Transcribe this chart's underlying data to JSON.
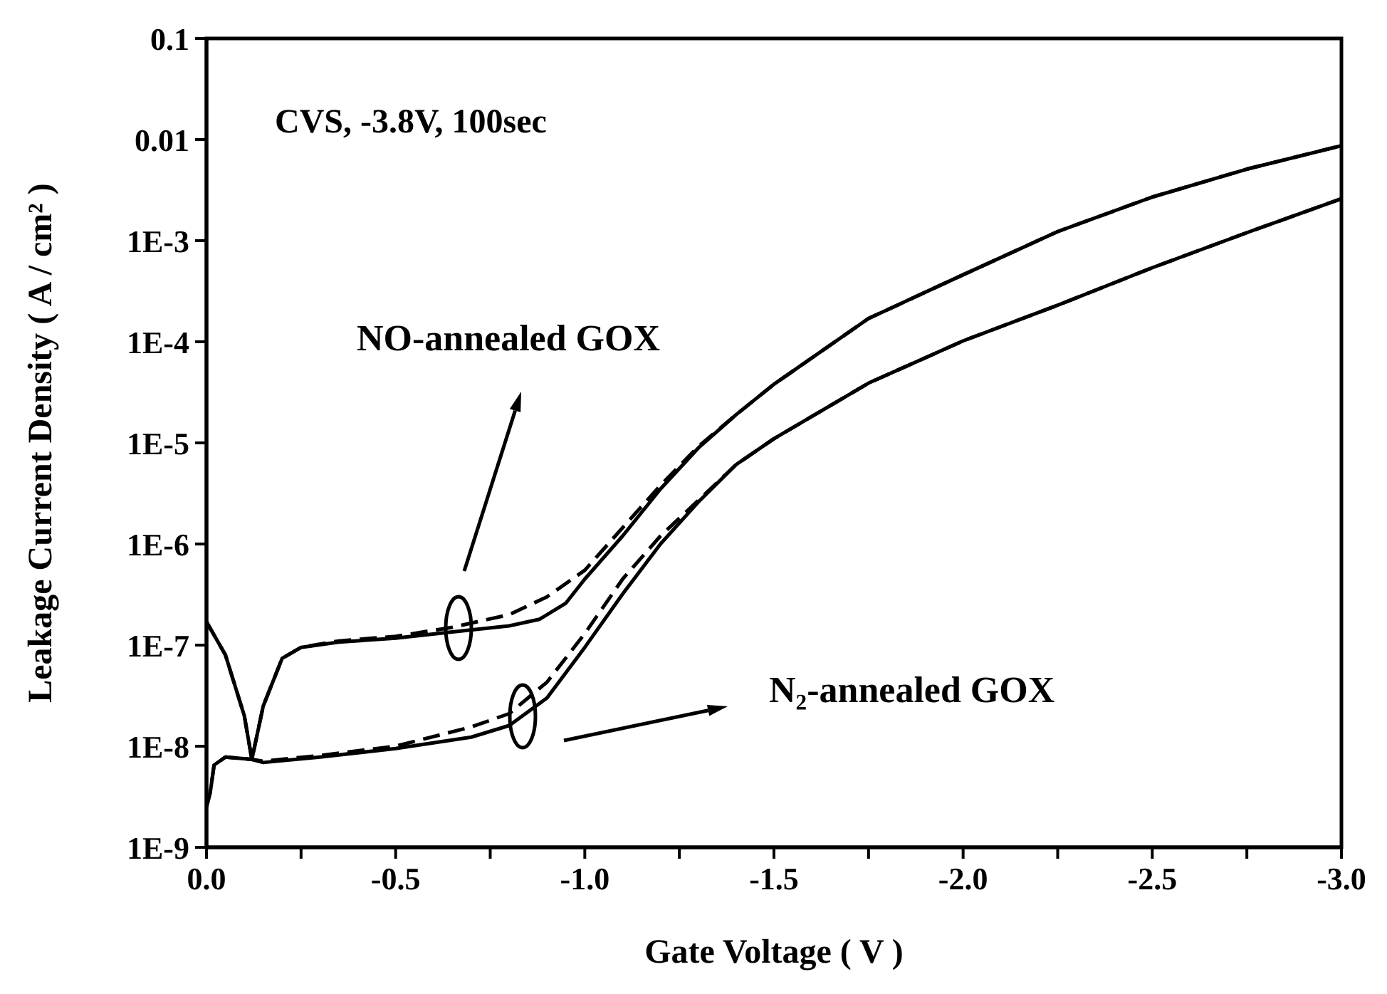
{
  "chart_data": {
    "type": "line",
    "xlabel": "Gate Voltage ( V )",
    "ylabel": "Leakage Current Density ( A / cm² )",
    "xlim": [
      0,
      -3
    ],
    "ylim": [
      1e-09,
      0.1
    ],
    "log": "y",
    "marker": "none",
    "xticks": [
      {
        "value": 0,
        "label": "0.0"
      },
      {
        "value": -0.25,
        "label": null
      },
      {
        "value": -0.5,
        "label": "-0.5"
      },
      {
        "value": -0.75,
        "label": null
      },
      {
        "value": -1,
        "label": "-1.0"
      },
      {
        "value": -1.25,
        "label": null
      },
      {
        "value": -1.5,
        "label": "-1.5"
      },
      {
        "value": -1.75,
        "label": null
      },
      {
        "value": -2,
        "label": "-2.0"
      },
      {
        "value": -2.25,
        "label": null
      },
      {
        "value": -2.5,
        "label": "-2.5"
      },
      {
        "value": -2.75,
        "label": null
      },
      {
        "value": -3,
        "label": "-3.0"
      }
    ],
    "yticks": [
      {
        "value": 1e-09,
        "label": "1E-9"
      },
      {
        "value": 1e-08,
        "label": "1E-8"
      },
      {
        "value": 1e-07,
        "label": "1E-7"
      },
      {
        "value": 1e-06,
        "label": "1E-6"
      },
      {
        "value": 1e-05,
        "label": "1E-5"
      },
      {
        "value": 0.0001,
        "label": "1E-4"
      },
      {
        "value": 0.001,
        "label": "1E-3"
      },
      0.01,
      0.1
    ],
    "annotations": [
      "CVS, -3.8V, 100sec",
      "NO-annealed GOX",
      "N₂-annealed GOX"
    ],
    "series": [
      {
        "color": "#000000",
        "line_style": "solid",
        "x": [
          0,
          -0.05,
          -0.1,
          -0.12,
          -0.15,
          -0.2,
          -0.25,
          -0.35,
          -0.5,
          -0.65,
          -0.8,
          -0.88,
          -0.95,
          -1.0,
          -1.1,
          -1.2,
          -1.3,
          -1.4,
          -1.5,
          -1.75,
          -2.0,
          -2.25,
          -2.5,
          -2.75,
          -3.0
        ],
        "values": [
          1.7e-07,
          8e-08,
          2e-08,
          7.4e-09,
          2.5e-08,
          7.4e-08,
          9.5e-08,
          1.07e-07,
          1.17e-07,
          1.35e-07,
          1.55e-07,
          1.8e-07,
          2.6e-07,
          4.5e-07,
          1.2e-06,
          3.5e-06,
          8.9e-06,
          1.9e-05,
          3.8e-05,
          0.00017,
          0.00046,
          0.00123,
          0.0027,
          0.0051,
          0.0087
        ]
      },
      {
        "color": "#000000",
        "line_style": "dashed",
        "x": [
          0,
          -0.05,
          -0.1,
          -0.12,
          -0.15,
          -0.2,
          -0.25,
          -0.35,
          -0.5,
          -0.65,
          -0.8,
          -0.9,
          -1.0,
          -1.1,
          -1.2,
          -1.3,
          -1.4,
          -1.5,
          -1.75,
          -2.0,
          -2.25,
          -2.5,
          -2.75,
          -3.0
        ],
        "values": [
          1.7e-07,
          8e-08,
          2e-08,
          7.4e-09,
          2.5e-08,
          7.4e-08,
          9.5e-08,
          1.1e-07,
          1.22e-07,
          1.5e-07,
          2e-07,
          3e-07,
          5.5e-07,
          1.45e-06,
          3.8e-06,
          9.2e-06,
          1.9e-05,
          3.8e-05,
          0.00017,
          0.00046,
          0.00123,
          0.0027,
          0.0051,
          0.0087
        ]
      },
      {
        "color": "#000000",
        "line_style": "solid",
        "x": [
          0,
          -0.01,
          -0.02,
          -0.05,
          -0.12,
          -0.15,
          -0.3,
          -0.5,
          -0.7,
          -0.8,
          -0.9,
          -1.0,
          -1.1,
          -1.2,
          -1.3,
          -1.4,
          -1.5,
          -1.75,
          -2.0,
          -2.25,
          -2.5,
          -2.75,
          -3.0
        ],
        "values": [
          2.5e-09,
          3.5e-09,
          6.5e-09,
          7.8e-09,
          7.4e-09,
          6.9e-09,
          7.8e-09,
          9.5e-09,
          1.23e-08,
          1.6e-08,
          3e-08,
          9.5e-08,
          3.2e-07,
          1e-06,
          2.6e-06,
          6.1e-06,
          1.1e-05,
          3.9e-05,
          0.000102,
          0.00023,
          0.00054,
          0.0012,
          0.0026
        ]
      },
      {
        "color": "#000000",
        "line_style": "dashed",
        "x": [
          0,
          -0.01,
          -0.02,
          -0.05,
          -0.12,
          -0.15,
          -0.3,
          -0.5,
          -0.7,
          -0.8,
          -0.9,
          -1.0,
          -1.1,
          -1.2,
          -1.3,
          -1.4,
          -1.5,
          -1.75,
          -2.0,
          -2.25,
          -2.5,
          -2.75,
          -3.0
        ],
        "values": [
          2.5e-09,
          3.5e-09,
          6.5e-09,
          7.8e-09,
          7.4e-09,
          7.1e-09,
          8.1e-09,
          1e-08,
          1.55e-08,
          2.1e-08,
          4.3e-08,
          1.3e-07,
          4.5e-07,
          1.2e-06,
          2.7e-06,
          6.1e-06,
          1.1e-05,
          3.9e-05,
          0.000102,
          0.00023,
          0.00054,
          0.0012,
          0.0026
        ]
      }
    ]
  }
}
